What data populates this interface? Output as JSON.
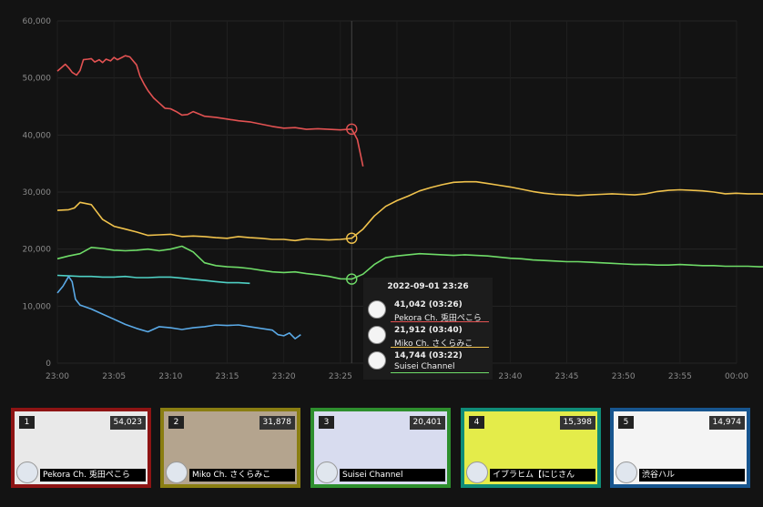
{
  "chart_data": {
    "type": "line",
    "x_ticks": [
      "23:00",
      "23:05",
      "23:10",
      "23:15",
      "23:20",
      "23:25",
      "23:30",
      "23:35",
      "23:40",
      "23:45",
      "23:50",
      "23:55",
      "00:00"
    ],
    "y_ticks": [
      "0",
      "10,000",
      "20,000",
      "30,000",
      "40,000",
      "50,000",
      "60,000"
    ],
    "xlim": [
      "23:00",
      "00:00"
    ],
    "ylim": [
      0,
      60000
    ],
    "grid": true,
    "hover_time": "23:26",
    "series": [
      {
        "name": "Pekora Ch. 兎田ぺこら",
        "color": "#e25252",
        "points": [
          [
            0,
            51200
          ],
          [
            0.3,
            51700
          ],
          [
            0.7,
            52400
          ],
          [
            1,
            51800
          ],
          [
            1.3,
            51000
          ],
          [
            1.7,
            50500
          ],
          [
            2,
            51300
          ],
          [
            2.3,
            53200
          ],
          [
            2.7,
            53300
          ],
          [
            3,
            53400
          ],
          [
            3.3,
            52800
          ],
          [
            3.7,
            53200
          ],
          [
            4,
            52700
          ],
          [
            4.3,
            53300
          ],
          [
            4.7,
            53000
          ],
          [
            5,
            53600
          ],
          [
            5.3,
            53200
          ],
          [
            5.7,
            53600
          ],
          [
            6,
            53900
          ],
          [
            6.4,
            53700
          ],
          [
            7,
            52300
          ],
          [
            7.3,
            50300
          ],
          [
            7.7,
            48800
          ],
          [
            8,
            47800
          ],
          [
            8.5,
            46500
          ],
          [
            9,
            45600
          ],
          [
            9.5,
            44700
          ],
          [
            10,
            44600
          ],
          [
            10.5,
            44100
          ],
          [
            11,
            43500
          ],
          [
            11.5,
            43600
          ],
          [
            12,
            44100
          ],
          [
            12.5,
            43700
          ],
          [
            13,
            43300
          ],
          [
            13.5,
            43200
          ],
          [
            14,
            43100
          ],
          [
            15,
            42800
          ],
          [
            16,
            42500
          ],
          [
            17,
            42300
          ],
          [
            18,
            41900
          ],
          [
            19,
            41500
          ],
          [
            20,
            41200
          ],
          [
            21,
            41300
          ],
          [
            22,
            41000
          ],
          [
            23,
            41100
          ],
          [
            24,
            41000
          ],
          [
            25,
            40900
          ],
          [
            26,
            41042
          ],
          [
            26.5,
            39200
          ],
          [
            27,
            34500
          ]
        ]
      },
      {
        "name": "Miko Ch. さくらみこ",
        "color": "#f0c24c",
        "points": [
          [
            0,
            26800
          ],
          [
            1,
            26900
          ],
          [
            1.5,
            27200
          ],
          [
            2,
            28200
          ],
          [
            3,
            27800
          ],
          [
            4,
            25200
          ],
          [
            5,
            24000
          ],
          [
            6,
            23500
          ],
          [
            7,
            23000
          ],
          [
            8,
            22400
          ],
          [
            9,
            22500
          ],
          [
            10,
            22600
          ],
          [
            11,
            22200
          ],
          [
            12,
            22300
          ],
          [
            13,
            22200
          ],
          [
            14,
            22000
          ],
          [
            15,
            21900
          ],
          [
            16,
            22200
          ],
          [
            17,
            22000
          ],
          [
            18,
            21900
          ],
          [
            19,
            21700
          ],
          [
            20,
            21700
          ],
          [
            21,
            21500
          ],
          [
            22,
            21800
          ],
          [
            23,
            21700
          ],
          [
            24,
            21600
          ],
          [
            25,
            21700
          ],
          [
            26,
            21912
          ],
          [
            27,
            23500
          ],
          [
            28,
            25800
          ],
          [
            29,
            27500
          ],
          [
            30,
            28500
          ],
          [
            31,
            29300
          ],
          [
            32,
            30200
          ],
          [
            33,
            30800
          ],
          [
            34,
            31300
          ],
          [
            35,
            31700
          ],
          [
            36,
            31800
          ],
          [
            37,
            31800
          ],
          [
            38,
            31500
          ],
          [
            39,
            31200
          ],
          [
            40,
            30900
          ],
          [
            41,
            30500
          ],
          [
            42,
            30100
          ],
          [
            43,
            29800
          ],
          [
            44,
            29600
          ],
          [
            45,
            29500
          ],
          [
            46,
            29400
          ],
          [
            47,
            29500
          ],
          [
            48,
            29600
          ],
          [
            49,
            29700
          ],
          [
            50,
            29600
          ],
          [
            51,
            29500
          ],
          [
            52,
            29700
          ],
          [
            53,
            30100
          ],
          [
            54,
            30300
          ],
          [
            55,
            30400
          ],
          [
            56,
            30300
          ],
          [
            57,
            30200
          ],
          [
            58,
            30000
          ],
          [
            59,
            29700
          ],
          [
            60,
            29800
          ],
          [
            61,
            29700
          ],
          [
            62,
            29700
          ],
          [
            63,
            29600
          ],
          [
            64,
            29700
          ],
          [
            65,
            29700
          ],
          [
            66,
            29700
          ],
          [
            67,
            29700
          ],
          [
            68,
            29800
          ],
          [
            69,
            29800
          ],
          [
            70,
            29700
          ],
          [
            71,
            29600
          ],
          [
            72,
            29700
          ],
          [
            73,
            29800
          ],
          [
            74,
            29800
          ],
          [
            75,
            29800
          ]
        ]
      },
      {
        "name": "Suisei Channel",
        "color": "#6fdc68",
        "points": [
          [
            0,
            18300
          ],
          [
            1,
            18800
          ],
          [
            2,
            19200
          ],
          [
            3,
            20300
          ],
          [
            4,
            20100
          ],
          [
            5,
            19800
          ],
          [
            6,
            19700
          ],
          [
            7,
            19800
          ],
          [
            8,
            20000
          ],
          [
            9,
            19700
          ],
          [
            10,
            20000
          ],
          [
            11,
            20500
          ],
          [
            12,
            19500
          ],
          [
            13,
            17600
          ],
          [
            14,
            17100
          ],
          [
            15,
            16900
          ],
          [
            16,
            16800
          ],
          [
            17,
            16600
          ],
          [
            18,
            16300
          ],
          [
            19,
            16000
          ],
          [
            20,
            15900
          ],
          [
            21,
            16000
          ],
          [
            22,
            15700
          ],
          [
            23,
            15500
          ],
          [
            24,
            15200
          ],
          [
            25,
            14800
          ],
          [
            26,
            14744
          ],
          [
            27,
            15600
          ],
          [
            28,
            17300
          ],
          [
            29,
            18500
          ],
          [
            30,
            18800
          ],
          [
            31,
            19000
          ],
          [
            32,
            19200
          ],
          [
            33,
            19100
          ],
          [
            34,
            19000
          ],
          [
            35,
            18900
          ],
          [
            36,
            19000
          ],
          [
            37,
            18900
          ],
          [
            38,
            18800
          ],
          [
            39,
            18600
          ],
          [
            40,
            18400
          ],
          [
            41,
            18300
          ],
          [
            42,
            18100
          ],
          [
            43,
            18000
          ],
          [
            44,
            17900
          ],
          [
            45,
            17800
          ],
          [
            46,
            17800
          ],
          [
            47,
            17700
          ],
          [
            48,
            17600
          ],
          [
            49,
            17500
          ],
          [
            50,
            17400
          ],
          [
            51,
            17300
          ],
          [
            52,
            17300
          ],
          [
            53,
            17200
          ],
          [
            54,
            17200
          ],
          [
            55,
            17300
          ],
          [
            56,
            17200
          ],
          [
            57,
            17100
          ],
          [
            58,
            17100
          ],
          [
            59,
            17000
          ],
          [
            60,
            17000
          ],
          [
            61,
            17000
          ],
          [
            62,
            16900
          ],
          [
            63,
            16900
          ],
          [
            64,
            16900
          ],
          [
            65,
            16900
          ],
          [
            66,
            16900
          ],
          [
            67,
            16900
          ],
          [
            68,
            17000
          ],
          [
            69,
            17000
          ],
          [
            70,
            17000
          ],
          [
            71,
            17000
          ],
          [
            72,
            16900
          ],
          [
            73,
            17000
          ],
          [
            74,
            17100
          ],
          [
            75,
            17000
          ]
        ]
      },
      {
        "name": "イブラヒム【にじさんじ】",
        "color": "#4fd1c5",
        "points": [
          [
            0,
            15400
          ],
          [
            1,
            15300
          ],
          [
            2,
            15200
          ],
          [
            3,
            15200
          ],
          [
            4,
            15100
          ],
          [
            5,
            15100
          ],
          [
            6,
            15200
          ],
          [
            7,
            15000
          ],
          [
            8,
            15000
          ],
          [
            9,
            15100
          ],
          [
            10,
            15100
          ],
          [
            11,
            14900
          ],
          [
            12,
            14700
          ],
          [
            13,
            14500
          ],
          [
            14,
            14300
          ],
          [
            15,
            14100
          ],
          [
            16,
            14100
          ],
          [
            17,
            14000
          ]
        ]
      },
      {
        "name": "渋谷ハル",
        "color": "#5aa9e6",
        "points": [
          [
            0,
            12300
          ],
          [
            0.5,
            13500
          ],
          [
            1,
            15200
          ],
          [
            1.3,
            14300
          ],
          [
            1.6,
            11200
          ],
          [
            2,
            10200
          ],
          [
            3,
            9500
          ],
          [
            4,
            8600
          ],
          [
            5,
            7700
          ],
          [
            6,
            6800
          ],
          [
            7,
            6100
          ],
          [
            8,
            5500
          ],
          [
            9,
            6400
          ],
          [
            10,
            6200
          ],
          [
            11,
            5900
          ],
          [
            12,
            6200
          ],
          [
            13,
            6400
          ],
          [
            14,
            6700
          ],
          [
            15,
            6600
          ],
          [
            16,
            6700
          ],
          [
            17,
            6400
          ],
          [
            18,
            6100
          ],
          [
            19,
            5800
          ],
          [
            19.5,
            5000
          ],
          [
            20,
            4800
          ],
          [
            20.5,
            5300
          ],
          [
            21,
            4300
          ],
          [
            21.5,
            5000
          ]
        ]
      }
    ]
  },
  "tooltip": {
    "time": "2022-09-01 23:26",
    "rows": [
      {
        "value": "41,042 (03:26)",
        "name": "Pekora Ch. 兎田ぺこら",
        "color": "#e25252"
      },
      {
        "value": "21,912 (03:40)",
        "name": "Miko Ch. さくらみこ",
        "color": "#f0c24c"
      },
      {
        "value": "14,744 (03:22)",
        "name": "Suisei Channel",
        "color": "#6fdc68"
      }
    ]
  },
  "cards": [
    {
      "rank": "1",
      "count": "54,023",
      "name": "Pekora Ch. 兎田ぺこら",
      "border": "#8e1414",
      "thumb": "#e9e9e9"
    },
    {
      "rank": "2",
      "count": "31,878",
      "name": "Miko Ch. さくらみこ",
      "border": "#8a7e12",
      "thumb": "#b4a48e"
    },
    {
      "rank": "3",
      "count": "20,401",
      "name": "Suisei Channel",
      "border": "#2e8f2e",
      "thumb": "#d8dcef"
    },
    {
      "rank": "4",
      "count": "15,398",
      "name": "イブラヒム【にじさん",
      "border": "#0f8c78",
      "thumb": "#e4ec4a"
    },
    {
      "rank": "5",
      "count": "14,974",
      "name": "渋谷ハル",
      "border": "#17558f",
      "thumb": "#f4f4f4"
    }
  ]
}
